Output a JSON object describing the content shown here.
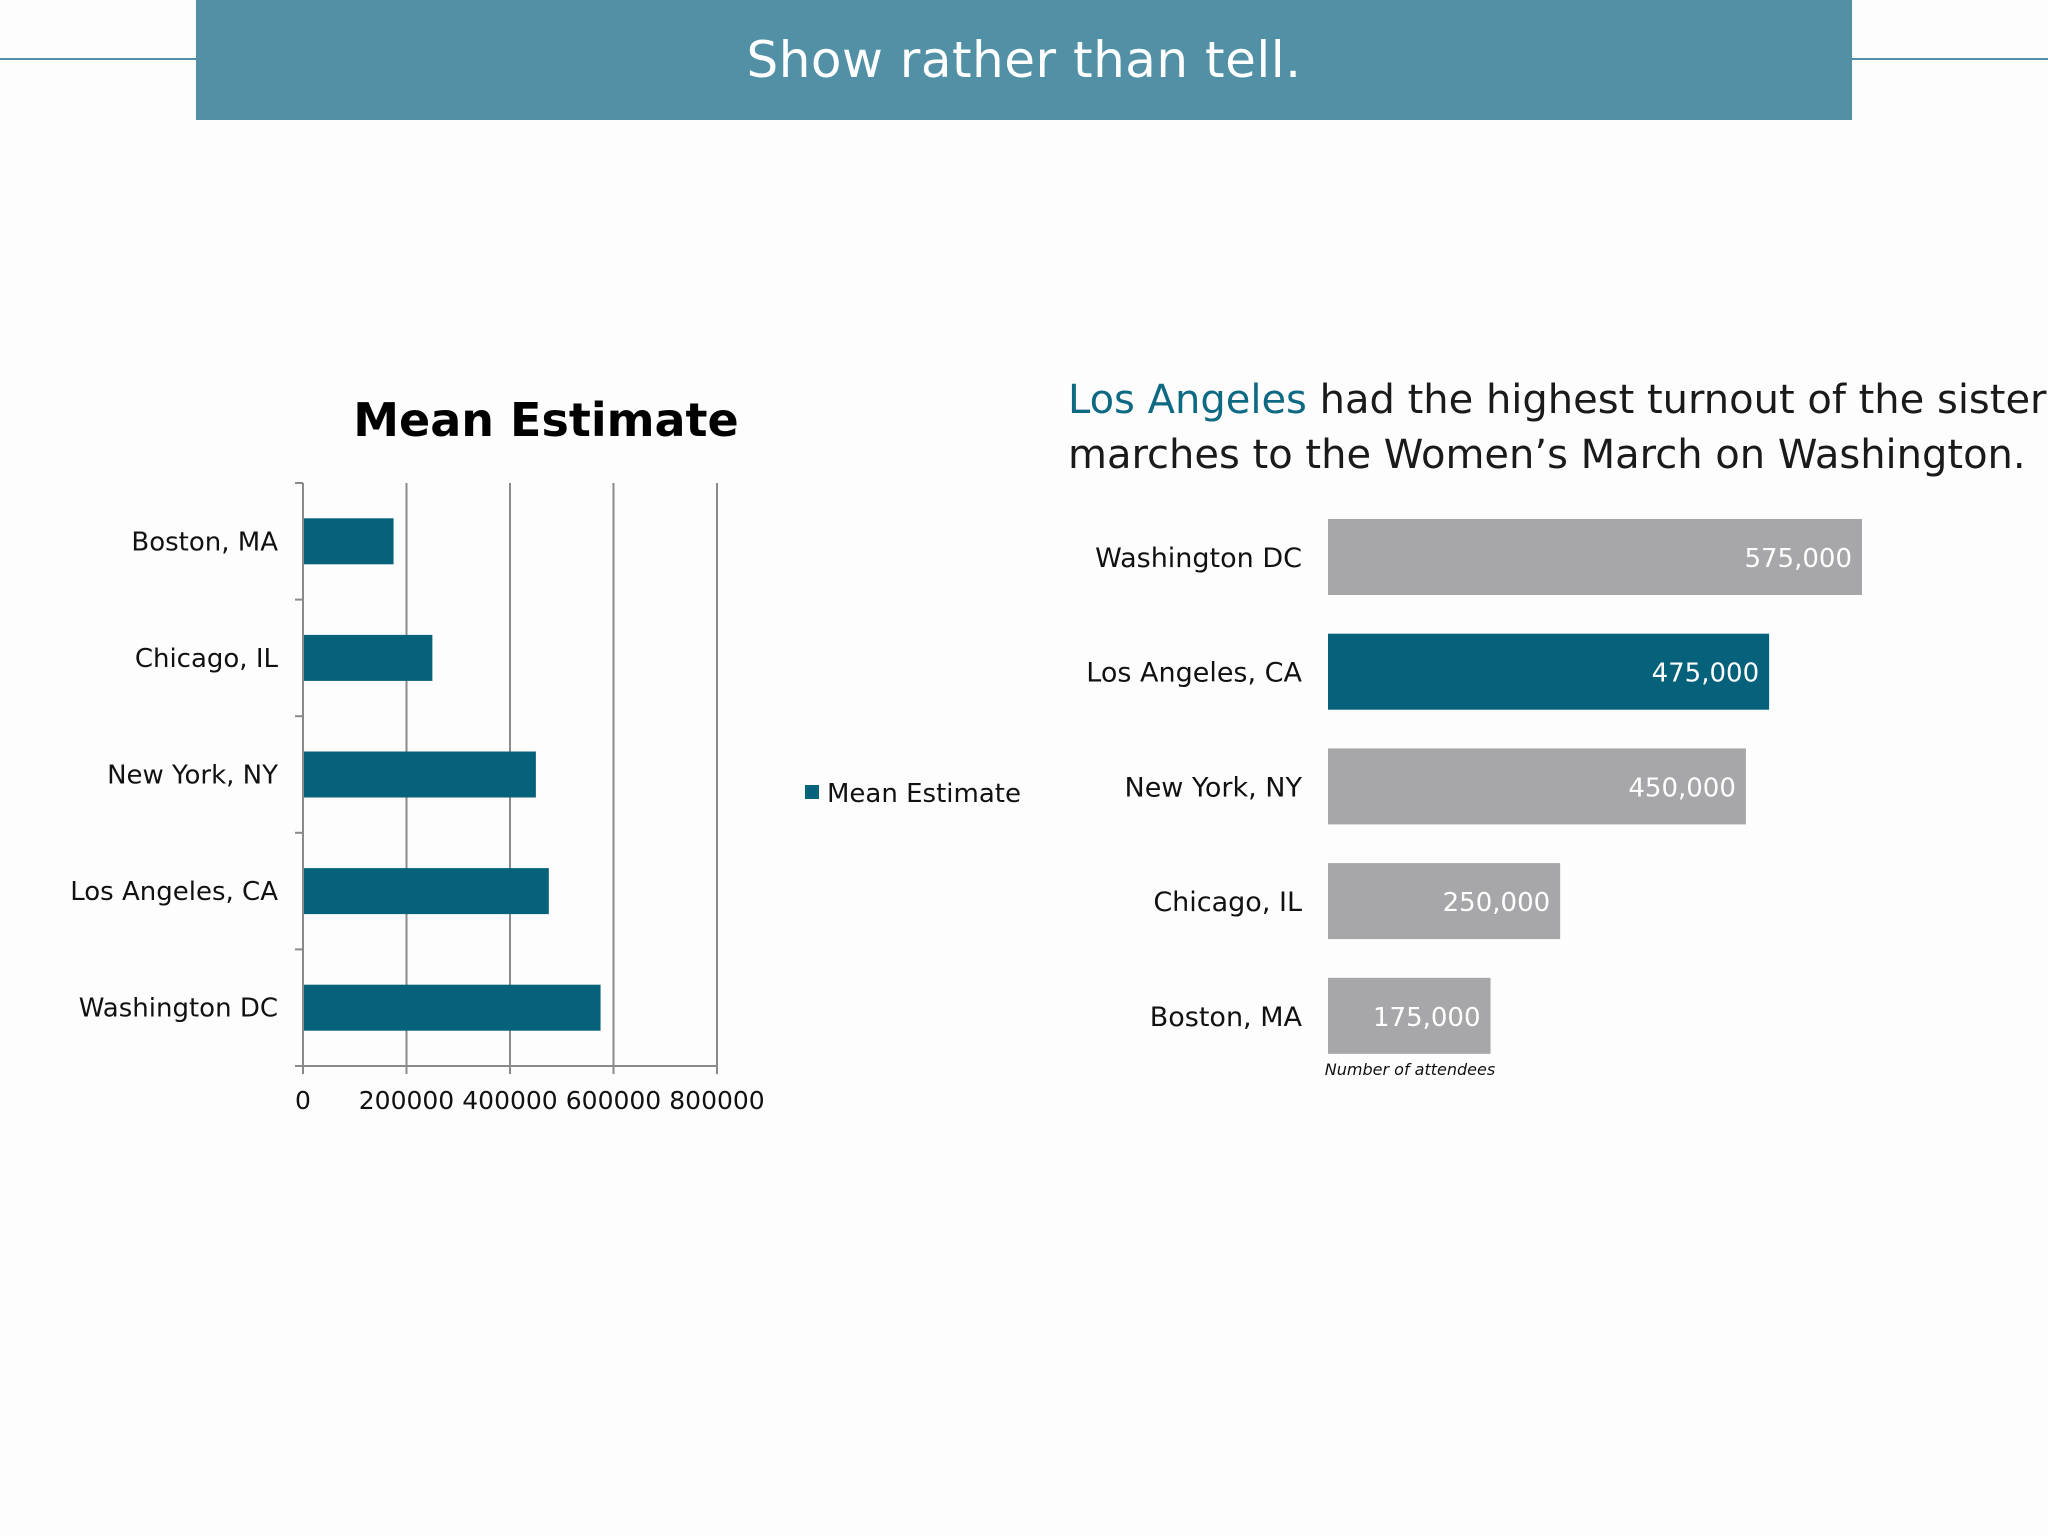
{
  "banner": {
    "title": "Show rather than tell."
  },
  "colors": {
    "banner": "#5190a5",
    "series": "#06627a",
    "highlight": "#06627a",
    "muted_bar": "#a7a6a8",
    "accent_text": "#0e6983"
  },
  "chart_data": [
    {
      "type": "bar",
      "orientation": "horizontal",
      "title": "Mean Estimate",
      "categories": [
        "Boston, MA",
        "Chicago, IL",
        "New York, NY",
        "Los Angeles, CA",
        "Washington DC"
      ],
      "series": [
        {
          "name": "Mean Estimate",
          "values": [
            175000,
            250000,
            450000,
            475000,
            575000
          ]
        }
      ],
      "xlim": [
        0,
        800000
      ],
      "xticks": [
        "0",
        "200000",
        "400000",
        "600000",
        "800000"
      ],
      "grid": true,
      "legend": "right"
    },
    {
      "type": "bar",
      "orientation": "horizontal",
      "headline_accent": "Los Angeles",
      "headline_rest_1": "had the highest turnout of the sister",
      "headline_line_2": "marches to the Women’s March on Washington.",
      "categories": [
        "Washington DC",
        "Los Angeles, CA",
        "New York, NY",
        "Chicago, IL",
        "Boston, MA"
      ],
      "values": [
        575000,
        475000,
        450000,
        250000,
        175000
      ],
      "value_labels": [
        "575,000",
        "475,000",
        "450,000",
        "250,000",
        "175,000"
      ],
      "highlight": "Los Angeles, CA",
      "xlabel": "Number of attendees"
    }
  ]
}
